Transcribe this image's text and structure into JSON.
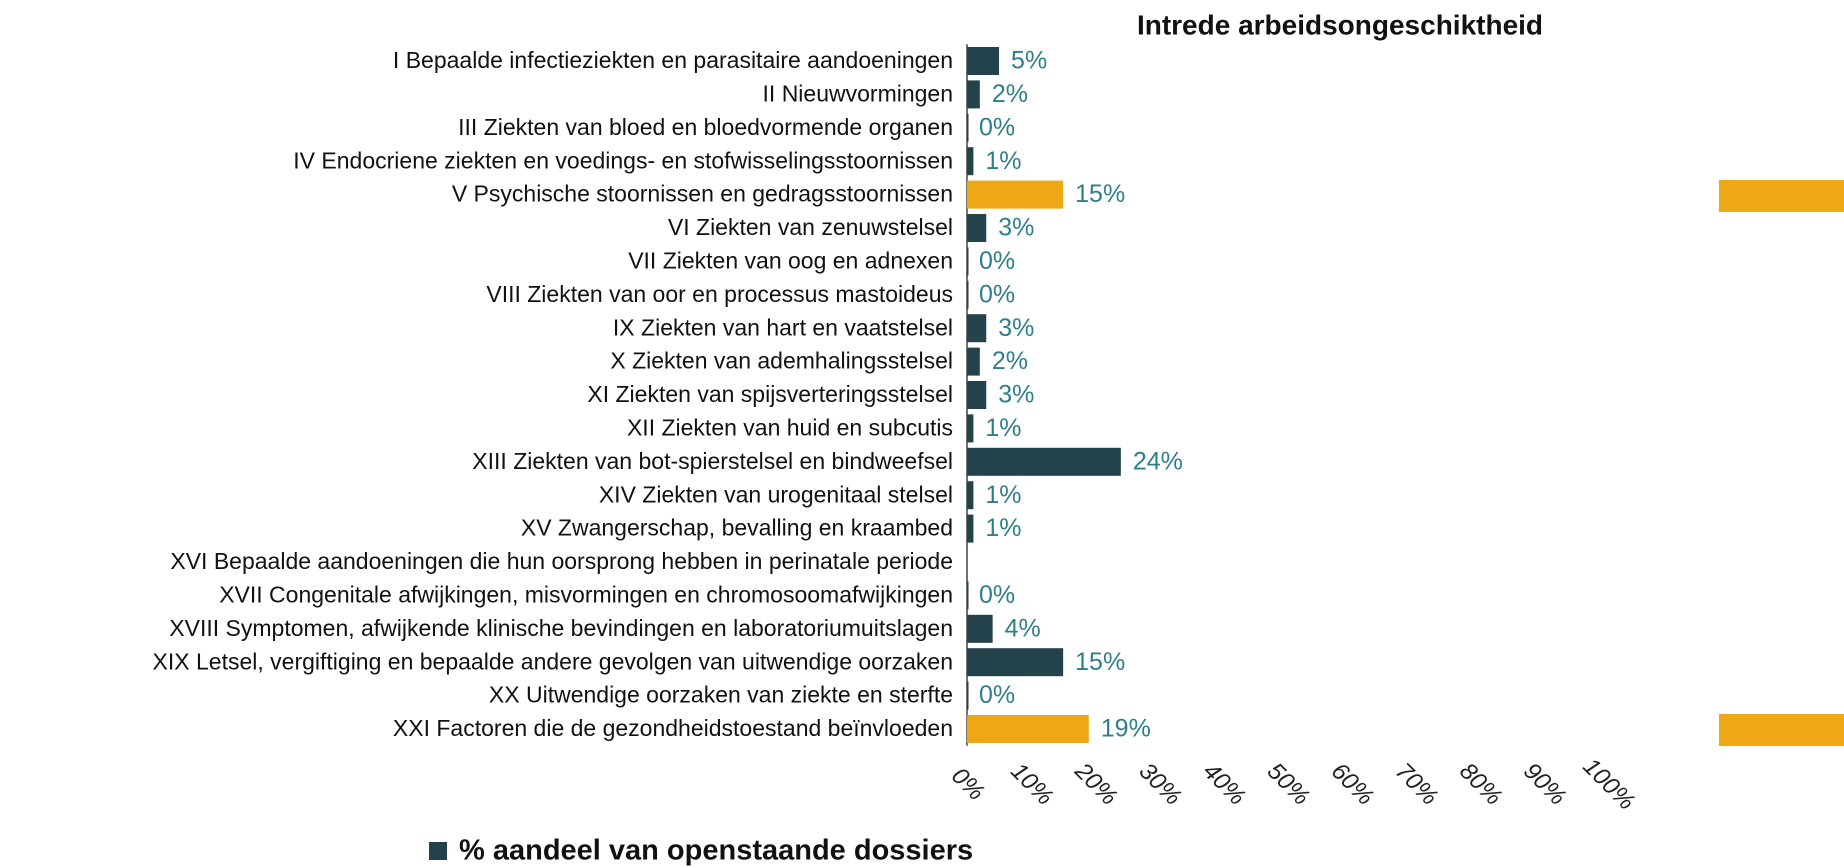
{
  "chart_data": {
    "type": "bar",
    "orientation": "horizontal",
    "title": "Intrede arbeidsongeschiktheid",
    "categories": [
      "I Bepaalde infectieziekten en parasitaire aandoeningen",
      "II Nieuwvormingen",
      "III Ziekten van bloed en bloedvormende organen",
      "IV Endocriene ziekten en voedings- en stofwisselingsstoornissen",
      "V Psychische stoornissen en gedragsstoornissen",
      "VI Ziekten van zenuwstelsel",
      "VII Ziekten van oog en adnexen",
      "VIII Ziekten van oor en processus mastoideus",
      "IX Ziekten van hart en vaatstelsel",
      "X Ziekten van ademhalingsstelsel",
      "XI Ziekten van spijsverteringsstelsel",
      "XII Ziekten van huid en subcutis",
      "XIII Ziekten van bot-spierstelsel en bindweefsel",
      "XIV Ziekten van urogenitaal stelsel",
      "XV Zwangerschap, bevalling en kraambed",
      "XVI Bepaalde aandoeningen die hun oorsprong hebben in perinatale periode",
      "XVII Congenitale afwijkingen, misvormingen en chromosoomafwijkingen",
      "XVIII Symptomen, afwijkende klinische bevindingen en laboratoriumuitslagen",
      "XIX Letsel, vergiftiging en bepaalde andere gevolgen van uitwendige oorzaken",
      "XX Uitwendige oorzaken van ziekte en sterfte",
      "XXI Factoren die de gezondheidstoestand beïnvloeden"
    ],
    "series": [
      {
        "name": "% aandeel van openstaande dossiers",
        "color": "#24424a",
        "values": [
          5,
          2,
          0,
          1,
          15,
          3,
          0,
          0,
          3,
          2,
          3,
          1,
          24,
          1,
          1,
          null,
          0,
          4,
          15,
          0,
          19
        ],
        "value_labels": [
          "5%",
          "2%",
          "0%",
          "1%",
          "15%",
          "3%",
          "0%",
          "0%",
          "3%",
          "2%",
          "3%",
          "1%",
          "24%",
          "1%",
          "1%",
          null,
          "0%",
          "4%",
          "15%",
          "0%",
          "19%"
        ],
        "bar_colors": [
          "#24424a",
          "#24424a",
          "#24424a",
          "#24424a",
          "#eea715",
          "#24424a",
          "#24424a",
          "#24424a",
          "#24424a",
          "#24424a",
          "#24424a",
          "#24424a",
          "#24424a",
          "#24424a",
          "#24424a",
          "#24424a",
          "#24424a",
          "#24424a",
          "#24424a",
          "#24424a",
          "#eea715"
        ]
      }
    ],
    "xlim": [
      0,
      100
    ],
    "xticks": [
      {
        "value": 0,
        "label": "0%"
      },
      {
        "value": 10,
        "label": "10%"
      },
      {
        "value": 20,
        "label": "20%"
      },
      {
        "value": 30,
        "label": "30%"
      },
      {
        "value": 40,
        "label": "40%"
      },
      {
        "value": 50,
        "label": "50%"
      },
      {
        "value": 60,
        "label": "60%"
      },
      {
        "value": 70,
        "label": "70%"
      },
      {
        "value": 80,
        "label": "80%"
      },
      {
        "value": 90,
        "label": "90%"
      },
      {
        "value": 100,
        "label": "100%"
      }
    ],
    "grid": false
  }
}
